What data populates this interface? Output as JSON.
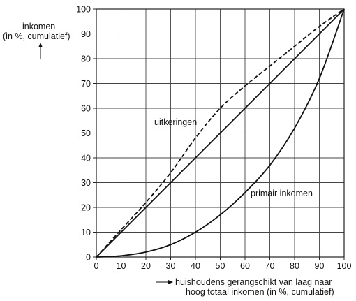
{
  "chart_data": {
    "type": "line",
    "ylabel_line1": "inkomen",
    "ylabel_line2": "(in %, cumulatief)",
    "xlabel_line1": "huishoudens gerangschikt van laag naar",
    "xlabel_line2": "hoog totaal inkomen (in %, cumulatief)",
    "xlim": [
      0,
      100
    ],
    "ylim": [
      0,
      100
    ],
    "xticks": [
      0,
      10,
      20,
      30,
      40,
      50,
      60,
      70,
      80,
      90,
      100
    ],
    "yticks": [
      0,
      10,
      20,
      30,
      40,
      50,
      60,
      70,
      80,
      90,
      100
    ],
    "grid": true,
    "series": [
      {
        "style": "solid",
        "x": [
          0,
          100
        ],
        "y": [
          0,
          100
        ]
      },
      {
        "name": "uitkeringen",
        "style": "dashed",
        "x": [
          0,
          10,
          20,
          30,
          40,
          50,
          60,
          70,
          80,
          90,
          100
        ],
        "y": [
          0,
          11,
          22,
          34,
          48,
          60,
          69,
          77,
          85,
          93,
          100
        ]
      },
      {
        "name": "primair inkomen",
        "style": "solid",
        "x": [
          0,
          10,
          20,
          30,
          40,
          50,
          60,
          70,
          80,
          90,
          100
        ],
        "y": [
          0,
          0.5,
          2,
          5,
          10,
          17,
          26,
          37,
          52,
          72,
          100
        ]
      }
    ]
  }
}
